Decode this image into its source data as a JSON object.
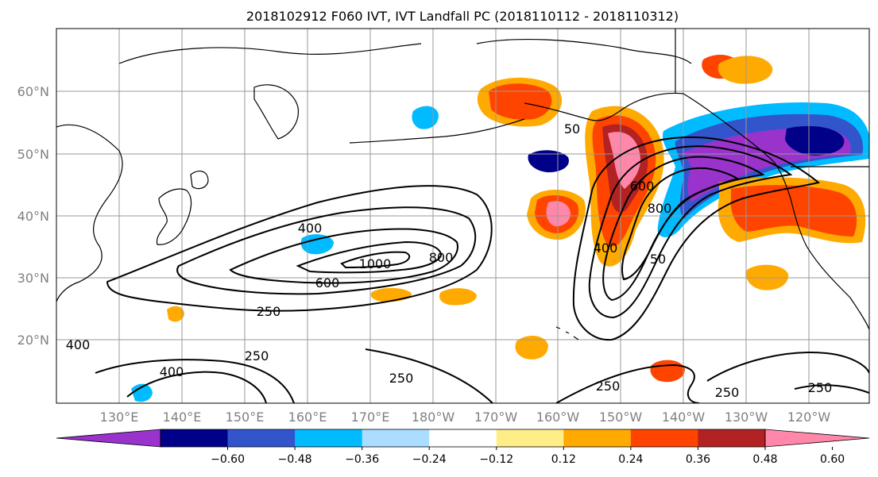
{
  "title": "2018102912 F060 IVT, IVT Landfall PC (2018110112 - 2018110312)",
  "lat_labels": [
    "20°N",
    "30°N",
    "40°N",
    "50°N",
    "60°N"
  ],
  "lon_labels": [
    "130°E",
    "140°E",
    "150°E",
    "160°E",
    "170°E",
    "180°W",
    "170°W",
    "160°W",
    "150°W",
    "140°W",
    "130°W",
    "120°W"
  ],
  "colorbar": {
    "colors": [
      "#9933cc",
      "#000088",
      "#3355cc",
      "#00bbff",
      "#aaddff",
      "#ffffff",
      "#ffee88",
      "#ffaa00",
      "#ff4400",
      "#b22222",
      "#ff88aa"
    ],
    "labels": [
      "−0.60",
      "−0.48",
      "−0.36",
      "−0.24",
      "−0.12",
      "0.12",
      "0.24",
      "0.36",
      "0.48",
      "0.60"
    ]
  },
  "contour_labels": [
    "400",
    "1000",
    "800",
    "600",
    "250",
    "250",
    "400",
    "250",
    "50",
    "600",
    "800",
    "400",
    "50",
    "250",
    "250",
    "400"
  ],
  "colors": {
    "grid": "#999999",
    "coast": "#000000"
  }
}
